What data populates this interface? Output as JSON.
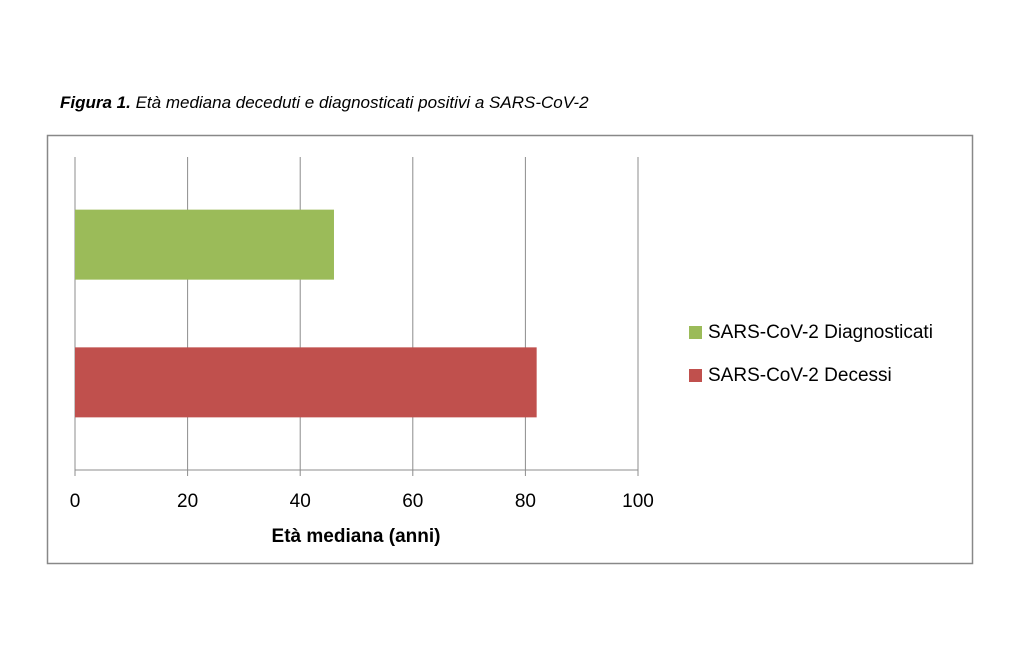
{
  "chart_data": {
    "type": "bar",
    "orientation": "horizontal",
    "title_label": "Figura 1.",
    "title": "Età mediana deceduti e diagnosticati positivi a SARS-CoV-2",
    "categories": [
      null
    ],
    "series": [
      {
        "name": "SARS-CoV-2 Diagnosticati",
        "color": "#9bbb59",
        "values": [
          46
        ]
      },
      {
        "name": "SARS-CoV-2 Decessi",
        "color": "#c0504d",
        "values": [
          82
        ]
      }
    ],
    "xlabel": "Età mediana (anni)",
    "xlim": [
      0,
      100
    ],
    "xticks": [
      0,
      20,
      40,
      60,
      80,
      100
    ],
    "grid": true,
    "legend": "right"
  }
}
